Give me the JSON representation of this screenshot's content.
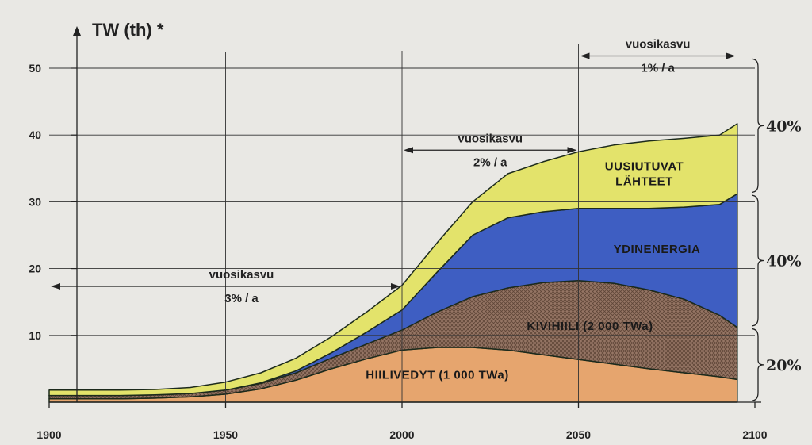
{
  "chart_data": {
    "type": "area",
    "stacked": true,
    "ylabel": "TW (th) *",
    "xlim": [
      1900,
      2100
    ],
    "ylim": [
      0,
      50
    ],
    "x_ticks": [
      "1900",
      "1950",
      "2000",
      "2050",
      "2100"
    ],
    "y_ticks": [
      "10",
      "20",
      "30",
      "40",
      "50"
    ],
    "grid": true,
    "x": [
      1900,
      1910,
      1920,
      1930,
      1940,
      1950,
      1960,
      1970,
      1980,
      1990,
      2000,
      2010,
      2020,
      2030,
      2040,
      2050,
      2060,
      2070,
      2080,
      2090,
      2095
    ],
    "series": [
      {
        "name": "HIILIVEDYT   (1 000 TWa)",
        "color": "#e6a56e",
        "values": [
          0.5,
          0.5,
          0.5,
          0.6,
          0.8,
          1.2,
          2.0,
          3.3,
          5.0,
          6.5,
          7.8,
          8.2,
          8.2,
          7.8,
          7.1,
          6.4,
          5.7,
          5.0,
          4.4,
          3.8,
          3.4
        ]
      },
      {
        "name": "KIVIHIILI   (2 000 TWa)",
        "color": "#957564",
        "values": [
          0.5,
          0.5,
          0.5,
          0.5,
          0.5,
          0.6,
          0.8,
          1.1,
          1.6,
          2.2,
          3.0,
          5.3,
          7.6,
          9.3,
          10.8,
          11.8,
          12.1,
          11.8,
          11.0,
          9.2,
          7.8
        ]
      },
      {
        "name": "YDINENERGIA",
        "color": "#3e5ec2",
        "values": [
          0,
          0,
          0,
          0,
          0,
          0,
          0.1,
          0.3,
          0.8,
          1.8,
          3.0,
          6.0,
          9.2,
          10.5,
          10.6,
          10.8,
          11.2,
          12.2,
          13.8,
          16.6,
          20.0
        ]
      },
      {
        "name": "UUSIUTUVAT LÄHTEET",
        "color": "#e3e36b",
        "values": [
          0.8,
          0.8,
          0.8,
          0.8,
          0.9,
          1.2,
          1.5,
          1.9,
          2.4,
          3.0,
          3.7,
          4.4,
          5.0,
          6.6,
          7.5,
          8.5,
          9.5,
          10.1,
          10.3,
          10.4,
          10.5
        ]
      }
    ],
    "annotations": [
      {
        "text_top": "vuosikasvu",
        "text_bottom": "3% / a",
        "from": 1900,
        "to": 2000,
        "y": 17.1
      },
      {
        "text_top": "vuosikasvu",
        "text_bottom": "2% / a",
        "from": 2000,
        "to": 2050,
        "y": 37.5
      },
      {
        "text_top": "vuosikasvu",
        "text_bottom": "1% / a",
        "from": 2050,
        "to": 2095,
        "y": 51.6
      }
    ],
    "shares": [
      {
        "label": "40%",
        "from": 31.2,
        "to": 51.6
      },
      {
        "label": "40%",
        "from": 11.2,
        "to": 31.2
      },
      {
        "label": "20%",
        "from": 0,
        "to": 11.2
      }
    ]
  }
}
